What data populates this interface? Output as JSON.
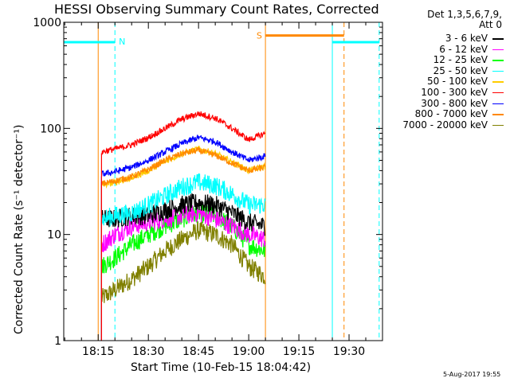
{
  "chart_data": {
    "type": "line",
    "title": "HESSI Observing Summary Count Rates, Corrected",
    "xlabel": "Start Time (10-Feb-15 18:04:42)",
    "ylabel": "Corrected Count Rate (s⁻¹ detector⁻¹)",
    "yscale": "log",
    "ylim": [
      1,
      1000
    ],
    "xlim": [
      "18:04:42",
      "19:40:00"
    ],
    "x_ticks": [
      "18:15",
      "18:30",
      "18:45",
      "19:00",
      "19:15",
      "19:30"
    ],
    "y_ticks": [
      "1",
      "10",
      "100",
      "1000"
    ],
    "legend_title": [
      "Det 1,3,5,6,7,9,",
      "Att 0"
    ],
    "legend_position": "right",
    "series": [
      {
        "name": "3 - 6 keV",
        "color": "#000000",
        "times": [
          "18:16",
          "18:20",
          "18:25",
          "18:30",
          "18:35",
          "18:40",
          "18:45",
          "18:50",
          "18:55",
          "19:00",
          "19:05"
        ],
        "values": [
          14,
          14,
          15,
          15,
          17,
          19,
          20,
          19,
          16,
          13,
          12
        ]
      },
      {
        "name": "6 - 12 keV",
        "color": "#ff00ff",
        "times": [
          "18:16",
          "18:20",
          "18:25",
          "18:30",
          "18:35",
          "18:40",
          "18:45",
          "18:50",
          "18:55",
          "19:00",
          "19:05"
        ],
        "values": [
          8,
          10,
          12,
          13,
          14,
          15,
          16,
          14,
          12,
          10,
          9
        ]
      },
      {
        "name": "12 - 25 keV",
        "color": "#00ff00",
        "times": [
          "18:16",
          "18:20",
          "18:25",
          "18:30",
          "18:35",
          "18:40",
          "18:45",
          "18:50",
          "18:55",
          "19:00",
          "19:05"
        ],
        "values": [
          5,
          6,
          8,
          10,
          12,
          14,
          16,
          15,
          12,
          8,
          7
        ]
      },
      {
        "name": "25 - 50 keV",
        "color": "#00ffff",
        "times": [
          "18:16",
          "18:20",
          "18:25",
          "18:30",
          "18:35",
          "18:40",
          "18:45",
          "18:50",
          "18:55",
          "19:00",
          "19:05"
        ],
        "values": [
          14,
          15,
          16,
          19,
          23,
          28,
          31,
          29,
          24,
          19,
          19
        ]
      },
      {
        "name": "50 - 100 keV",
        "color": "#ffcc00",
        "times": [
          "18:16",
          "18:20",
          "18:25",
          "18:30",
          "18:35",
          "18:40",
          "18:45",
          "18:50",
          "18:55",
          "19:00",
          "19:05"
        ],
        "values": [
          29,
          31,
          34,
          40,
          49,
          58,
          64,
          58,
          48,
          40,
          44
        ]
      },
      {
        "name": "100 - 300 keV",
        "color": "#ff0000",
        "times": [
          "18:16",
          "18:20",
          "18:25",
          "18:30",
          "18:35",
          "18:40",
          "18:45",
          "18:50",
          "18:55",
          "19:00",
          "19:05"
        ],
        "values": [
          60,
          64,
          70,
          82,
          100,
          122,
          138,
          125,
          100,
          78,
          90
        ]
      },
      {
        "name": "300 - 800 keV",
        "color": "#0000ff",
        "times": [
          "18:16",
          "18:20",
          "18:25",
          "18:30",
          "18:35",
          "18:40",
          "18:45",
          "18:50",
          "18:55",
          "19:00",
          "19:05"
        ],
        "values": [
          37,
          39,
          43,
          50,
          60,
          72,
          82,
          75,
          60,
          50,
          55
        ]
      },
      {
        "name": "800 - 7000 keV",
        "color": "#ff8800",
        "times": [
          "18:16",
          "18:20",
          "18:25",
          "18:30",
          "18:35",
          "18:40",
          "18:45",
          "18:50",
          "18:55",
          "19:00",
          "19:05"
        ],
        "values": [
          30,
          32,
          35,
          41,
          50,
          58,
          62,
          56,
          47,
          40,
          43
        ]
      },
      {
        "name": "7000 - 20000 keV",
        "color": "#808000",
        "times": [
          "18:16",
          "18:20",
          "18:25",
          "18:30",
          "18:35",
          "18:40",
          "18:45",
          "18:50",
          "18:55",
          "19:00",
          "19:05"
        ],
        "values": [
          2.5,
          3,
          3.8,
          5,
          7,
          9,
          11,
          10,
          8,
          5,
          4
        ]
      }
    ],
    "annotations": [
      {
        "text": "N",
        "color": "#00ffff"
      },
      {
        "text": "S",
        "color": "#ff8800"
      }
    ],
    "vertical_markers": [
      {
        "time": "18:04:42",
        "color": "#00ffff",
        "style": "solid"
      },
      {
        "time": "18:15:00",
        "color": "#ff8800",
        "style": "solid"
      },
      {
        "time": "18:20:00",
        "color": "#00ffff",
        "style": "dashed"
      },
      {
        "time": "19:05:00",
        "color": "#ff8800",
        "style": "solid"
      },
      {
        "time": "19:25:00",
        "color": "#00ffff",
        "style": "solid"
      },
      {
        "time": "19:28:30",
        "color": "#ff8800",
        "style": "dashed"
      },
      {
        "time": "19:39:00",
        "color": "#00ffff",
        "style": "dashed"
      }
    ],
    "flag_bars": [
      {
        "label": "night",
        "color": "#00ffff",
        "value": 650,
        "intervals": [
          [
            "18:04:42",
            "18:20:00"
          ],
          [
            "19:25:00",
            "19:39:00"
          ]
        ]
      },
      {
        "label": "saa",
        "color": "#ff8800",
        "value": 750,
        "intervals": [
          [
            "19:05:00",
            "19:28:30"
          ]
        ]
      }
    ]
  },
  "timestamp": "5-Aug-2017 19:55"
}
